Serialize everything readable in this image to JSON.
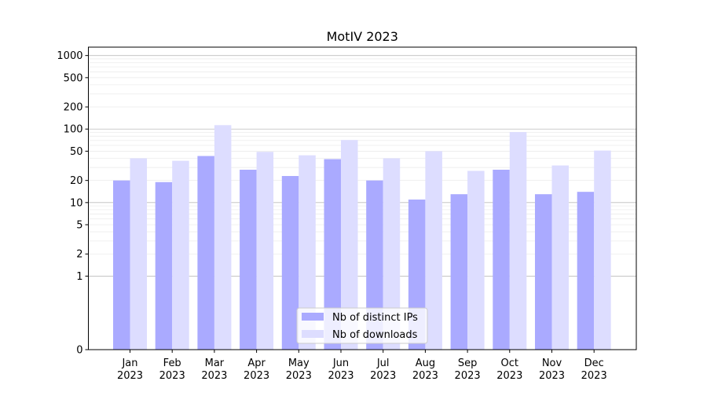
{
  "chart_data": {
    "type": "bar",
    "title": "MotIV 2023",
    "xlabel": "",
    "ylabel": "",
    "y_scale": "symlog",
    "ylim": [
      0,
      1300
    ],
    "y_ticks": [
      0,
      1,
      2,
      5,
      10,
      20,
      50,
      100,
      200,
      500,
      1000
    ],
    "y_tick_labels": [
      "0",
      "1",
      "2",
      "5",
      "10",
      "20",
      "50",
      "100",
      "200",
      "500",
      "1000"
    ],
    "grid": "horizontal major and minor lines",
    "legend_position": "lower center",
    "categories": [
      [
        "Jan",
        "2023"
      ],
      [
        "Feb",
        "2023"
      ],
      [
        "Mar",
        "2023"
      ],
      [
        "Apr",
        "2023"
      ],
      [
        "May",
        "2023"
      ],
      [
        "Jun",
        "2023"
      ],
      [
        "Jul",
        "2023"
      ],
      [
        "Aug",
        "2023"
      ],
      [
        "Sep",
        "2023"
      ],
      [
        "Oct",
        "2023"
      ],
      [
        "Nov",
        "2023"
      ],
      [
        "Dec",
        "2023"
      ]
    ],
    "series": [
      {
        "name": "Nb of distinct IPs",
        "color": "#aaaaff",
        "values": [
          20,
          19,
          43,
          28,
          23,
          39,
          20,
          11,
          13,
          28,
          13,
          14
        ]
      },
      {
        "name": "Nb of downloads",
        "color": "#ddddff",
        "values": [
          40,
          37,
          113,
          49,
          44,
          71,
          40,
          50,
          27,
          91,
          32,
          51
        ]
      }
    ]
  }
}
